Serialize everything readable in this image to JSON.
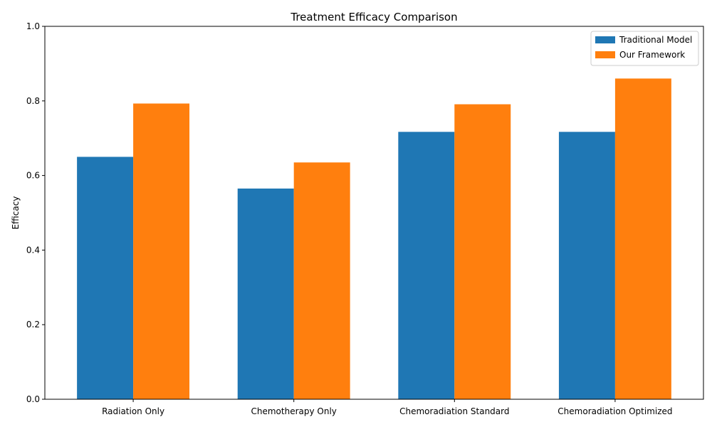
{
  "chart_data": {
    "type": "bar",
    "title": "Treatment Efficacy Comparison",
    "xlabel": "",
    "ylabel": "Efficacy",
    "categories": [
      "Radiation Only",
      "Chemotherapy Only",
      "Chemoradiation Standard",
      "Chemoradiation Optimized"
    ],
    "series": [
      {
        "name": "Traditional Model",
        "values": [
          0.65,
          0.565,
          0.717,
          0.717
        ],
        "color": "#1f77b4"
      },
      {
        "name": "Our Framework",
        "values": [
          0.793,
          0.635,
          0.791,
          0.86
        ],
        "color": "#ff7f0e"
      }
    ],
    "ylim": [
      0,
      1.0
    ],
    "yticks": [
      0.0,
      0.2,
      0.4,
      0.6,
      0.8,
      1.0
    ],
    "ytick_labels": [
      "0.0",
      "0.2",
      "0.4",
      "0.6",
      "0.8",
      "1.0"
    ],
    "grid": false,
    "legend_position": "top-right"
  }
}
